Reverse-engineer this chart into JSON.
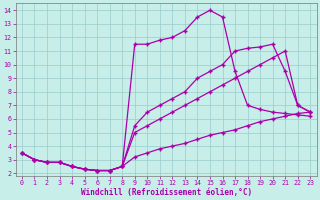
{
  "bg_color": "#c8eeea",
  "line_color": "#aa00aa",
  "grid_color": "#99cccc",
  "xlabel": "Windchill (Refroidissement éolien,°C)",
  "xlim": [
    -0.5,
    23.5
  ],
  "ylim": [
    1.8,
    14.5
  ],
  "yticks": [
    2,
    3,
    4,
    5,
    6,
    7,
    8,
    9,
    10,
    11,
    12,
    13,
    14
  ],
  "xticks": [
    0,
    1,
    2,
    3,
    4,
    5,
    6,
    7,
    8,
    9,
    10,
    11,
    12,
    13,
    14,
    15,
    16,
    17,
    18,
    19,
    20,
    21,
    22,
    23
  ],
  "curves": [
    [
      3.5,
      3.0,
      2.8,
      2.8,
      2.5,
      2.3,
      2.2,
      2.2,
      2.5,
      11.5,
      11.5,
      11.8,
      12.0,
      12.5,
      13.5,
      14.0,
      13.5,
      9.5,
      7.0,
      6.7,
      6.5,
      6.4,
      6.3,
      6.2
    ],
    [
      3.5,
      3.0,
      2.8,
      2.8,
      2.5,
      2.3,
      2.2,
      2.2,
      2.5,
      5.5,
      6.5,
      7.0,
      7.5,
      8.0,
      9.0,
      9.5,
      10.0,
      11.0,
      11.2,
      11.3,
      11.5,
      9.5,
      7.0,
      6.5
    ],
    [
      3.5,
      3.0,
      2.8,
      2.8,
      2.5,
      2.3,
      2.2,
      2.2,
      2.5,
      5.0,
      5.5,
      6.0,
      6.5,
      7.0,
      7.5,
      8.0,
      8.5,
      9.0,
      9.5,
      10.0,
      10.5,
      11.0,
      7.0,
      6.5
    ],
    [
      3.5,
      3.0,
      2.8,
      2.8,
      2.5,
      2.3,
      2.2,
      2.2,
      2.5,
      3.2,
      3.5,
      3.8,
      4.0,
      4.2,
      4.5,
      4.8,
      5.0,
      5.2,
      5.5,
      5.8,
      6.0,
      6.2,
      6.4,
      6.5
    ]
  ]
}
